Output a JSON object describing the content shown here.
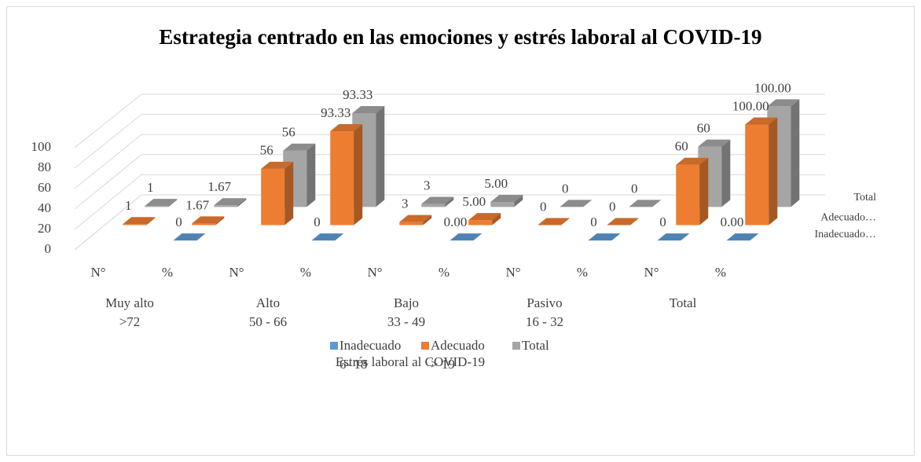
{
  "chart_data": {
    "type": "bar3d",
    "title": "Estrategia centrado en las emociones y estrés laboral al COVID-19",
    "x_label": "Estrés laboral al COVID-19",
    "categories": [
      "N°",
      "%",
      "N°",
      "%",
      "N°",
      "%",
      "N°",
      "%",
      "N°",
      "%"
    ],
    "group_labels": [
      "Muy alto\n>72",
      "Alto\n50 - 66",
      "Bajo\n33 - 49",
      "Pasivo\n16 - 32",
      "Total"
    ],
    "depth_labels": [
      "Inadecuado…",
      "Adecuado…",
      "Total"
    ],
    "series": [
      {
        "name": "Inadecuado\n6- 18",
        "color": "#5b9bd5",
        "values": [
          null,
          0,
          null,
          0,
          null,
          0,
          null,
          0,
          0,
          0
        ],
        "value_labels": [
          null,
          "0",
          null,
          "0",
          null,
          "0.00",
          null,
          "0",
          "0",
          "0.00"
        ]
      },
      {
        "name": "Adecuado\n> 19",
        "color": "#ed7d31",
        "values": [
          1,
          1.67,
          56,
          93.33,
          3,
          5,
          0,
          0,
          60,
          100
        ],
        "value_labels": [
          "1",
          "1.67",
          "56",
          "93.33",
          "3",
          "5.00",
          "0",
          "0",
          "60",
          "100.00"
        ]
      },
      {
        "name": "Total",
        "color": "#a5a5a5",
        "values": [
          1,
          1.67,
          56,
          93.33,
          3,
          5,
          0,
          0,
          60,
          100
        ],
        "value_labels": [
          "1",
          "1.67",
          "56",
          "93.33",
          "3",
          "5.00",
          "0",
          "0",
          "60",
          "100.00"
        ]
      }
    ],
    "ylim": [
      0,
      100
    ],
    "yticks": [
      0,
      20,
      40,
      60,
      80,
      100
    ],
    "grid": true,
    "legend": "bottom"
  }
}
